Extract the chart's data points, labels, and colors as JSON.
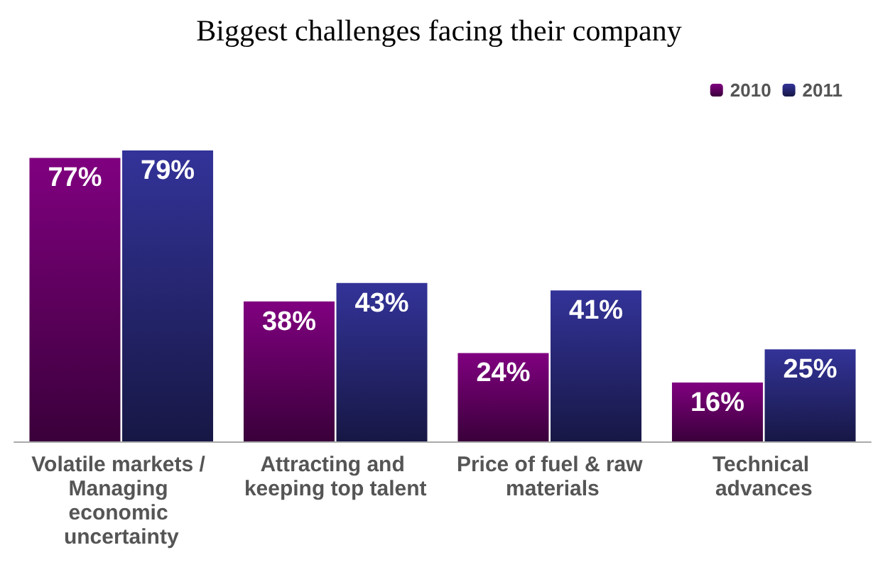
{
  "chart_data": {
    "type": "bar",
    "title": "Biggest challenges facing their company",
    "categories": [
      "Volatile markets / Managing economic uncertainty",
      "Attracting and keeping top talent",
      "Price of fuel & raw materials",
      "Technical advances"
    ],
    "series": [
      {
        "name": "2010",
        "color": "#800080",
        "values": [
          77,
          38,
          24,
          16
        ],
        "value_labels": [
          "77%",
          "38%",
          "24%",
          "16%"
        ]
      },
      {
        "name": "2011",
        "color": "#333399",
        "values": [
          79,
          43,
          41,
          25
        ],
        "value_labels": [
          "79%",
          "43%",
          "41%",
          "25%"
        ]
      }
    ],
    "legend": "top right"
  }
}
